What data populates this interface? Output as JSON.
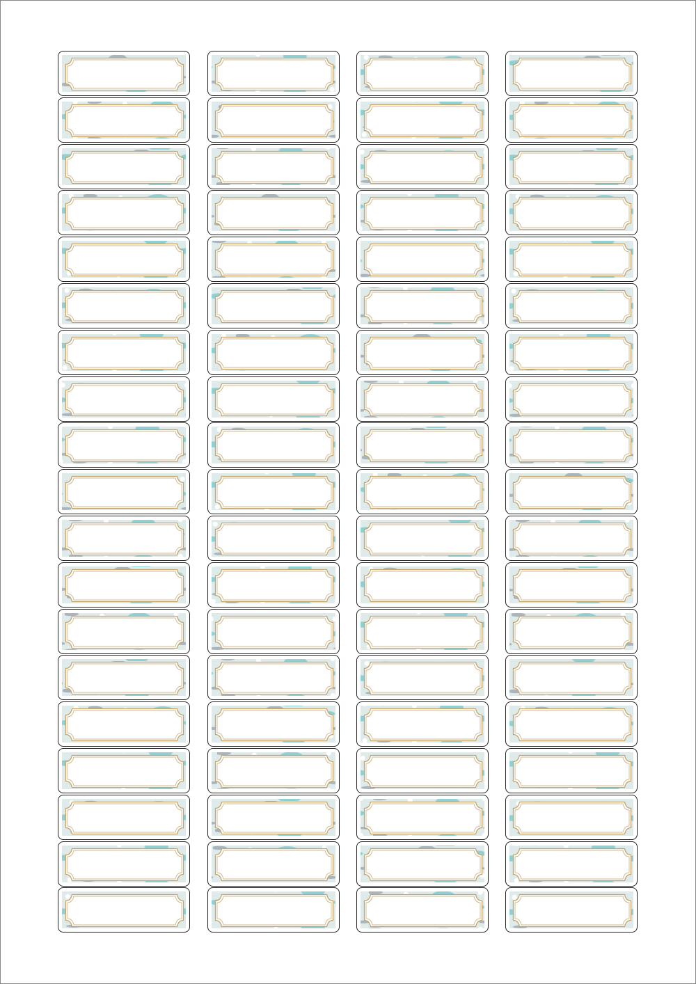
{
  "sheet": {
    "columns": 4,
    "rows": 19,
    "colors": {
      "label_border": "#222222",
      "pattern_teal": "#8fd0d4",
      "pattern_gray": "#a9b4bd",
      "frame_gold": "#c4a46a"
    }
  }
}
